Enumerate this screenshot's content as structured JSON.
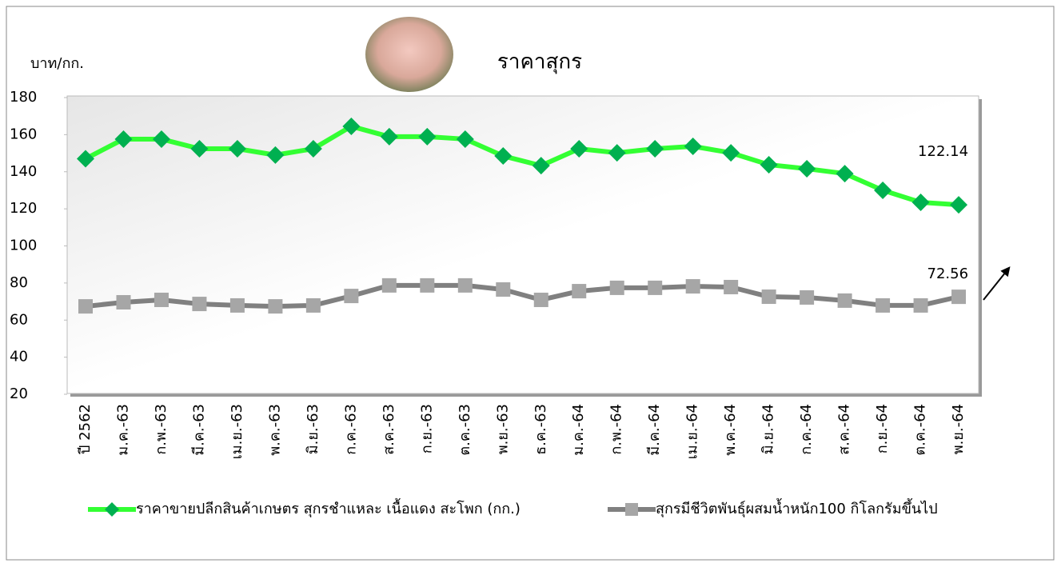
{
  "chart_data": {
    "type": "line",
    "title": "ราคาสุกร",
    "y_label": "บาท/กก.",
    "categories": [
      "ปี 2562",
      "ม.ค.-63",
      "ก.พ.-63",
      "มี.ค.-63",
      "เม.ย.-63",
      "พ.ค.-63",
      "มิ.ย.-63",
      "ก.ค.-63",
      "ส.ค.-63",
      "ก.ย.-63",
      "ต.ค.-63",
      "พ.ย.-63",
      "ธ.ค.-63",
      "ม.ค.-64",
      "ก.พ.-64",
      "มี.ค.-64",
      "เม.ย.-64",
      "พ.ค.-64",
      "มิ.ย.-64",
      "ก.ค.-64",
      "ส.ค.-64",
      "ก.ย.-64",
      "ต.ค.-64",
      "พ.ย.-64"
    ],
    "series": [
      {
        "name": "ราคาขายปลีกสินค้าเกษตร สุกรชำแหละ เนื้อแดง สะโพก (กก.)",
        "color": "#33ff33",
        "marker_color": "#00b050",
        "marker": "diamond",
        "values": [
          147,
          157.6,
          157.6,
          152.4,
          152.4,
          149,
          152.4,
          164.5,
          158.9,
          158.9,
          157.6,
          148.5,
          143.3,
          152.4,
          150.2,
          152.4,
          153.7,
          150.2,
          143.8,
          141.6,
          139,
          130,
          123.5,
          122.14
        ]
      },
      {
        "name": "สุกรมีชีวิตพันธุ์ผสมน้ำหนัก100 กิโลกรัมขึ้นไป",
        "color": "#808080",
        "marker_color": "#a6a6a6",
        "marker": "square",
        "values": [
          67.4,
          69.6,
          70.9,
          68.7,
          67.9,
          67.4,
          67.9,
          73,
          78.7,
          78.7,
          78.7,
          76.5,
          70.9,
          75.6,
          77.4,
          77.4,
          78.2,
          77.8,
          72.6,
          72.2,
          70.5,
          67.9,
          67.9,
          72.56
        ]
      }
    ],
    "ylim": [
      20,
      180
    ],
    "yticks": [
      20,
      40,
      60,
      80,
      100,
      120,
      140,
      160,
      180
    ],
    "grid": false
  }
}
